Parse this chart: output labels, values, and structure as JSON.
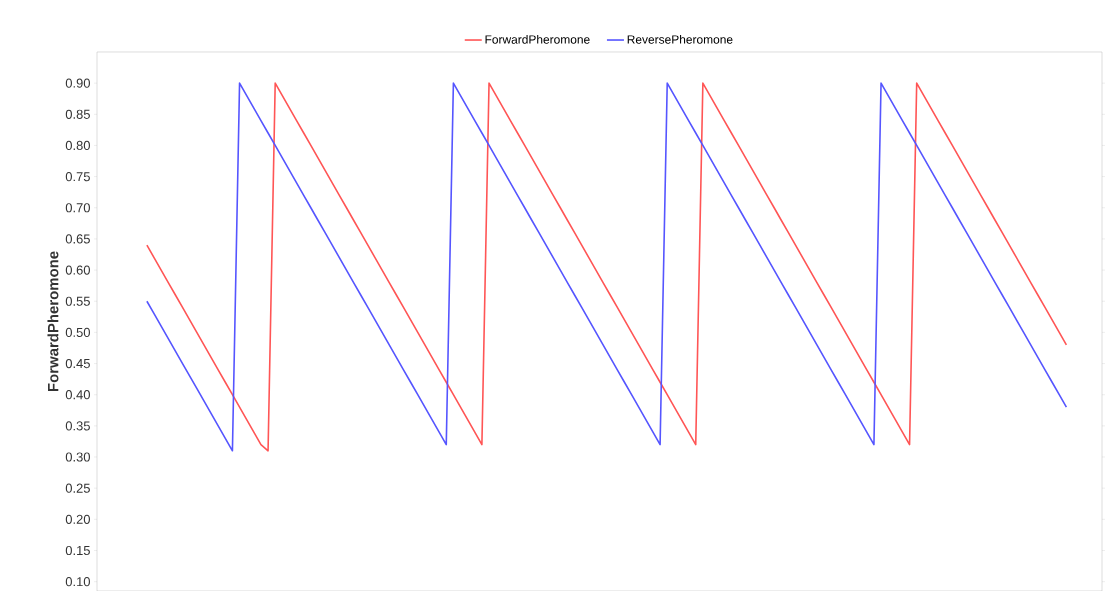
{
  "chart_data": {
    "type": "line",
    "ylabel": "ForwardPheromone",
    "legend": "top",
    "tick_labels": "y",
    "ylim": [
      0.085,
      0.95
    ],
    "categories": [
      null,
      null,
      null,
      null,
      null,
      null,
      null,
      null,
      null,
      null,
      null,
      null,
      null,
      null,
      null,
      null,
      null,
      null,
      null,
      null,
      null,
      null,
      null,
      null,
      null,
      null,
      null,
      null,
      null,
      null,
      null,
      null,
      null,
      null,
      null,
      null,
      null,
      null,
      null,
      null,
      null,
      null,
      null,
      null,
      null,
      null,
      null,
      null,
      null,
      null,
      null,
      null,
      null,
      null,
      null,
      null,
      null,
      null,
      null,
      null,
      null,
      null,
      null,
      null,
      null,
      null,
      null,
      null,
      null,
      null,
      null,
      null,
      null,
      null,
      null,
      null,
      null,
      null,
      null,
      null,
      null,
      null,
      null,
      null,
      null,
      null,
      null,
      null,
      null,
      null,
      null,
      null,
      null,
      null,
      null,
      null,
      null,
      null,
      null,
      null,
      null,
      null,
      null,
      null,
      null,
      null,
      null,
      null,
      null,
      null,
      null,
      null,
      null,
      null,
      null,
      null,
      null,
      null,
      null,
      null,
      null,
      null,
      null,
      null,
      null,
      null,
      null,
      null,
      null,
      null
    ],
    "yticks": [
      {
        "value": 0.1,
        "label": "0.10"
      },
      {
        "value": 0.15,
        "label": "0.15"
      },
      {
        "value": 0.2,
        "label": "0.20"
      },
      {
        "value": 0.25,
        "label": "0.25"
      },
      {
        "value": 0.3,
        "label": "0.30"
      },
      {
        "value": 0.35,
        "label": "0.35"
      },
      {
        "value": 0.4,
        "label": "0.40"
      },
      {
        "value": 0.45,
        "label": "0.45"
      },
      {
        "value": 0.5,
        "label": "0.50"
      },
      {
        "value": 0.55,
        "label": "0.55"
      },
      {
        "value": 0.6,
        "label": "0.60"
      },
      {
        "value": 0.65,
        "label": "0.65"
      },
      {
        "value": 0.7,
        "label": "0.70"
      },
      {
        "value": 0.75,
        "label": "0.75"
      },
      {
        "value": 0.8,
        "label": "0.80"
      },
      {
        "value": 0.85,
        "label": "0.85"
      },
      {
        "value": 0.9,
        "label": "0.90"
      }
    ],
    "series": [
      {
        "name": "ForwardPheromone",
        "color": "#ff5555",
        "values": [
          0.64,
          0.62,
          0.6,
          0.58,
          0.56,
          0.54,
          0.52,
          0.5,
          0.48,
          0.46,
          0.44,
          0.42,
          0.4,
          0.38,
          0.36,
          0.34,
          0.32,
          0.31,
          0.9,
          0.88,
          0.86,
          0.84,
          0.82,
          0.8,
          0.78,
          0.76,
          0.74,
          0.72,
          0.7,
          0.68,
          0.66,
          0.64,
          0.62,
          0.6,
          0.58,
          0.56,
          0.54,
          0.52,
          0.5,
          0.48,
          0.46,
          0.44,
          0.42,
          0.4,
          0.38,
          0.36,
          0.34,
          0.32,
          0.9,
          0.88,
          0.86,
          0.84,
          0.82,
          0.8,
          0.78,
          0.76,
          0.74,
          0.72,
          0.7,
          0.68,
          0.66,
          0.64,
          0.62,
          0.6,
          0.58,
          0.56,
          0.54,
          0.52,
          0.5,
          0.48,
          0.46,
          0.44,
          0.42,
          0.4,
          0.38,
          0.36,
          0.34,
          0.32,
          0.9,
          0.88,
          0.86,
          0.84,
          0.82,
          0.8,
          0.78,
          0.76,
          0.74,
          0.72,
          0.7,
          0.68,
          0.66,
          0.64,
          0.62,
          0.6,
          0.58,
          0.56,
          0.54,
          0.52,
          0.5,
          0.48,
          0.46,
          0.44,
          0.42,
          0.4,
          0.38,
          0.36,
          0.34,
          0.32,
          0.9,
          0.88,
          0.86,
          0.84,
          0.82,
          0.8,
          0.78,
          0.76,
          0.74,
          0.72,
          0.7,
          0.68,
          0.66,
          0.64,
          0.62,
          0.6,
          0.58,
          0.56,
          0.54,
          0.52,
          0.5,
          0.48
        ]
      },
      {
        "name": "ReversePheromone",
        "color": "#5555ff",
        "values": [
          0.55,
          0.53,
          0.51,
          0.49,
          0.47,
          0.45,
          0.43,
          0.41,
          0.39,
          0.37,
          0.35,
          0.33,
          0.31,
          0.9,
          0.88,
          0.86,
          0.84,
          0.82,
          0.8,
          0.78,
          0.76,
          0.74,
          0.72,
          0.7,
          0.68,
          0.66,
          0.64,
          0.62,
          0.6,
          0.58,
          0.56,
          0.54,
          0.52,
          0.5,
          0.48,
          0.46,
          0.44,
          0.42,
          0.4,
          0.38,
          0.36,
          0.34,
          0.32,
          0.9,
          0.88,
          0.86,
          0.84,
          0.82,
          0.8,
          0.78,
          0.76,
          0.74,
          0.72,
          0.7,
          0.68,
          0.66,
          0.64,
          0.62,
          0.6,
          0.58,
          0.56,
          0.54,
          0.52,
          0.5,
          0.48,
          0.46,
          0.44,
          0.42,
          0.4,
          0.38,
          0.36,
          0.34,
          0.32,
          0.9,
          0.88,
          0.86,
          0.84,
          0.82,
          0.8,
          0.78,
          0.76,
          0.74,
          0.72,
          0.7,
          0.68,
          0.66,
          0.64,
          0.62,
          0.6,
          0.58,
          0.56,
          0.54,
          0.52,
          0.5,
          0.48,
          0.46,
          0.44,
          0.42,
          0.4,
          0.38,
          0.36,
          0.34,
          0.32,
          0.9,
          0.88,
          0.86,
          0.84,
          0.82,
          0.8,
          0.78,
          0.76,
          0.74,
          0.72,
          0.7,
          0.68,
          0.66,
          0.64,
          0.62,
          0.6,
          0.58,
          0.56,
          0.54,
          0.52,
          0.5,
          0.48,
          0.46,
          0.44,
          0.42,
          0.4,
          0.38
        ]
      }
    ]
  }
}
